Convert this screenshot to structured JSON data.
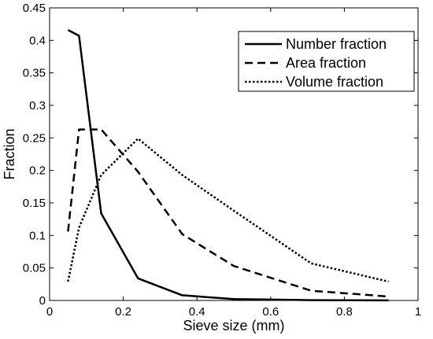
{
  "chart_data": {
    "type": "line",
    "xlabel": "Sieve size (mm)",
    "ylabel": "Fraction",
    "xlim": [
      0,
      1
    ],
    "ylim": [
      0,
      0.45
    ],
    "xticks": [
      0,
      0.2,
      0.4,
      0.6,
      0.8,
      1
    ],
    "xtick_labels": [
      "0",
      "0.2",
      "0.4",
      "0.6",
      "0.8",
      "1"
    ],
    "yticks": [
      0,
      0.05,
      0.1,
      0.15,
      0.2,
      0.25,
      0.3,
      0.35,
      0.4,
      0.45
    ],
    "ytick_labels": [
      "0",
      "0.05",
      "0.1",
      "0.15",
      "0.2",
      "0.25",
      "0.3",
      "0.35",
      "0.4",
      "0.45"
    ],
    "grid": false,
    "legend_position": "top-right",
    "series": [
      {
        "name": "Number fraction",
        "style": "solid",
        "x": [
          0.05,
          0.08,
          0.14,
          0.24,
          0.36,
          0.5,
          0.71,
          0.92
        ],
        "y": [
          0.416,
          0.407,
          0.134,
          0.034,
          0.008,
          0.002,
          0.0005,
          0.0001
        ]
      },
      {
        "name": "Area fraction",
        "style": "dashed",
        "x": [
          0.05,
          0.08,
          0.14,
          0.24,
          0.36,
          0.5,
          0.71,
          0.92
        ],
        "y": [
          0.106,
          0.263,
          0.263,
          0.198,
          0.102,
          0.053,
          0.015,
          0.006
        ]
      },
      {
        "name": "Volume fraction",
        "style": "dotted",
        "x": [
          0.05,
          0.08,
          0.14,
          0.24,
          0.36,
          0.5,
          0.71,
          0.92
        ],
        "y": [
          0.029,
          0.112,
          0.193,
          0.249,
          0.193,
          0.138,
          0.057,
          0.029
        ]
      }
    ],
    "colors": {
      "line": "#000000",
      "background": "#ffffff"
    }
  }
}
